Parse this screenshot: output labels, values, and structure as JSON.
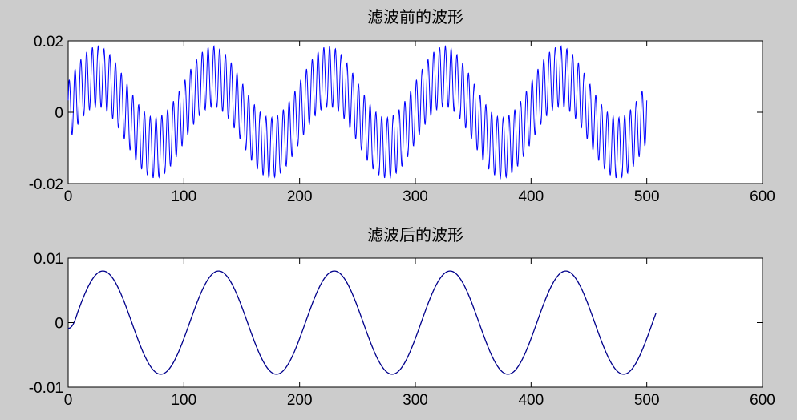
{
  "chart_data": [
    {
      "type": "line",
      "title": "滤波前的波形",
      "xlim": [
        0,
        600
      ],
      "ylim": [
        -0.02,
        0.02
      ],
      "xticks": [
        "0",
        "100",
        "200",
        "300",
        "400",
        "500",
        "600"
      ],
      "yticks": [
        "-0.02",
        "0",
        "0.02"
      ],
      "grid": false,
      "series": [
        {
          "color": "#0000ff",
          "x_range": [
            0,
            500
          ],
          "base_period": 100,
          "base_amplitude": 0.01,
          "noise_period": 5,
          "noise_amplitude": 0.0085,
          "values_sampled": [
            {
              "x": 0,
              "y": 0.0
            },
            {
              "x": 25,
              "y": 0.01
            },
            {
              "x": 75,
              "y": -0.01
            },
            {
              "x": 125,
              "y": 0.01
            },
            {
              "x": 175,
              "y": -0.01
            },
            {
              "x": 225,
              "y": 0.01
            },
            {
              "x": 275,
              "y": -0.01
            },
            {
              "x": 325,
              "y": 0.01
            },
            {
              "x": 375,
              "y": -0.01
            },
            {
              "x": 425,
              "y": 0.01
            },
            {
              "x": 475,
              "y": -0.01
            },
            {
              "x": 500,
              "y": -0.001
            }
          ]
        }
      ]
    },
    {
      "type": "line",
      "title": "滤波后的波形",
      "xlim": [
        0,
        600
      ],
      "ylim": [
        -0.01,
        0.01
      ],
      "xticks": [
        "0",
        "100",
        "200",
        "300",
        "400",
        "500",
        "600"
      ],
      "yticks": [
        "-0.01",
        "0",
        "0.01"
      ],
      "grid": false,
      "series": [
        {
          "color": "#00008b",
          "x_range": [
            0,
            508
          ],
          "period": 100,
          "amplitude": 0.008,
          "phase_shift": 5,
          "values_sampled": [
            {
              "x": 0,
              "y": 0.0
            },
            {
              "x": 30,
              "y": 0.008
            },
            {
              "x": 80,
              "y": -0.008
            },
            {
              "x": 130,
              "y": 0.008
            },
            {
              "x": 180,
              "y": -0.008
            },
            {
              "x": 230,
              "y": 0.008
            },
            {
              "x": 280,
              "y": -0.008
            },
            {
              "x": 330,
              "y": 0.008
            },
            {
              "x": 380,
              "y": -0.008
            },
            {
              "x": 430,
              "y": 0.008
            },
            {
              "x": 480,
              "y": -0.008
            },
            {
              "x": 508,
              "y": 0.0
            }
          ]
        }
      ]
    }
  ]
}
